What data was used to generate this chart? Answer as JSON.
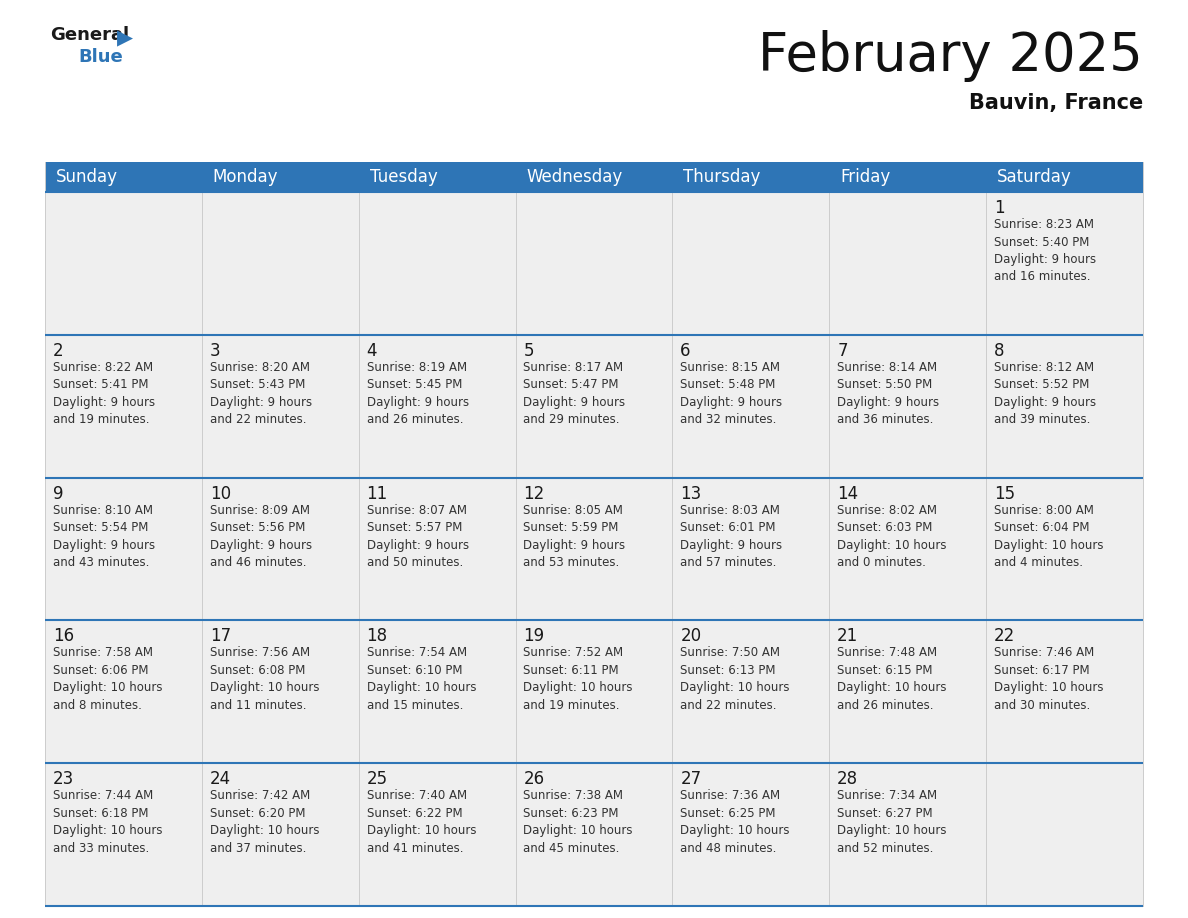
{
  "title": "February 2025",
  "subtitle": "Bauvin, France",
  "header_color": "#2E75B6",
  "header_text_color": "#FFFFFF",
  "cell_bg_color": "#EFEFEF",
  "border_color": "#2E75B6",
  "sep_color": "#2E75B6",
  "days_of_week": [
    "Sunday",
    "Monday",
    "Tuesday",
    "Wednesday",
    "Thursday",
    "Friday",
    "Saturday"
  ],
  "title_fontsize": 38,
  "subtitle_fontsize": 15,
  "day_name_fontsize": 12,
  "day_num_fontsize": 12,
  "cell_text_fontsize": 8.5,
  "calendar_data": [
    [
      {
        "day": null,
        "text": ""
      },
      {
        "day": null,
        "text": ""
      },
      {
        "day": null,
        "text": ""
      },
      {
        "day": null,
        "text": ""
      },
      {
        "day": null,
        "text": ""
      },
      {
        "day": null,
        "text": ""
      },
      {
        "day": 1,
        "text": "Sunrise: 8:23 AM\nSunset: 5:40 PM\nDaylight: 9 hours\nand 16 minutes."
      }
    ],
    [
      {
        "day": 2,
        "text": "Sunrise: 8:22 AM\nSunset: 5:41 PM\nDaylight: 9 hours\nand 19 minutes."
      },
      {
        "day": 3,
        "text": "Sunrise: 8:20 AM\nSunset: 5:43 PM\nDaylight: 9 hours\nand 22 minutes."
      },
      {
        "day": 4,
        "text": "Sunrise: 8:19 AM\nSunset: 5:45 PM\nDaylight: 9 hours\nand 26 minutes."
      },
      {
        "day": 5,
        "text": "Sunrise: 8:17 AM\nSunset: 5:47 PM\nDaylight: 9 hours\nand 29 minutes."
      },
      {
        "day": 6,
        "text": "Sunrise: 8:15 AM\nSunset: 5:48 PM\nDaylight: 9 hours\nand 32 minutes."
      },
      {
        "day": 7,
        "text": "Sunrise: 8:14 AM\nSunset: 5:50 PM\nDaylight: 9 hours\nand 36 minutes."
      },
      {
        "day": 8,
        "text": "Sunrise: 8:12 AM\nSunset: 5:52 PM\nDaylight: 9 hours\nand 39 minutes."
      }
    ],
    [
      {
        "day": 9,
        "text": "Sunrise: 8:10 AM\nSunset: 5:54 PM\nDaylight: 9 hours\nand 43 minutes."
      },
      {
        "day": 10,
        "text": "Sunrise: 8:09 AM\nSunset: 5:56 PM\nDaylight: 9 hours\nand 46 minutes."
      },
      {
        "day": 11,
        "text": "Sunrise: 8:07 AM\nSunset: 5:57 PM\nDaylight: 9 hours\nand 50 minutes."
      },
      {
        "day": 12,
        "text": "Sunrise: 8:05 AM\nSunset: 5:59 PM\nDaylight: 9 hours\nand 53 minutes."
      },
      {
        "day": 13,
        "text": "Sunrise: 8:03 AM\nSunset: 6:01 PM\nDaylight: 9 hours\nand 57 minutes."
      },
      {
        "day": 14,
        "text": "Sunrise: 8:02 AM\nSunset: 6:03 PM\nDaylight: 10 hours\nand 0 minutes."
      },
      {
        "day": 15,
        "text": "Sunrise: 8:00 AM\nSunset: 6:04 PM\nDaylight: 10 hours\nand 4 minutes."
      }
    ],
    [
      {
        "day": 16,
        "text": "Sunrise: 7:58 AM\nSunset: 6:06 PM\nDaylight: 10 hours\nand 8 minutes."
      },
      {
        "day": 17,
        "text": "Sunrise: 7:56 AM\nSunset: 6:08 PM\nDaylight: 10 hours\nand 11 minutes."
      },
      {
        "day": 18,
        "text": "Sunrise: 7:54 AM\nSunset: 6:10 PM\nDaylight: 10 hours\nand 15 minutes."
      },
      {
        "day": 19,
        "text": "Sunrise: 7:52 AM\nSunset: 6:11 PM\nDaylight: 10 hours\nand 19 minutes."
      },
      {
        "day": 20,
        "text": "Sunrise: 7:50 AM\nSunset: 6:13 PM\nDaylight: 10 hours\nand 22 minutes."
      },
      {
        "day": 21,
        "text": "Sunrise: 7:48 AM\nSunset: 6:15 PM\nDaylight: 10 hours\nand 26 minutes."
      },
      {
        "day": 22,
        "text": "Sunrise: 7:46 AM\nSunset: 6:17 PM\nDaylight: 10 hours\nand 30 minutes."
      }
    ],
    [
      {
        "day": 23,
        "text": "Sunrise: 7:44 AM\nSunset: 6:18 PM\nDaylight: 10 hours\nand 33 minutes."
      },
      {
        "day": 24,
        "text": "Sunrise: 7:42 AM\nSunset: 6:20 PM\nDaylight: 10 hours\nand 37 minutes."
      },
      {
        "day": 25,
        "text": "Sunrise: 7:40 AM\nSunset: 6:22 PM\nDaylight: 10 hours\nand 41 minutes."
      },
      {
        "day": 26,
        "text": "Sunrise: 7:38 AM\nSunset: 6:23 PM\nDaylight: 10 hours\nand 45 minutes."
      },
      {
        "day": 27,
        "text": "Sunrise: 7:36 AM\nSunset: 6:25 PM\nDaylight: 10 hours\nand 48 minutes."
      },
      {
        "day": 28,
        "text": "Sunrise: 7:34 AM\nSunset: 6:27 PM\nDaylight: 10 hours\nand 52 minutes."
      },
      {
        "day": null,
        "text": ""
      }
    ]
  ]
}
